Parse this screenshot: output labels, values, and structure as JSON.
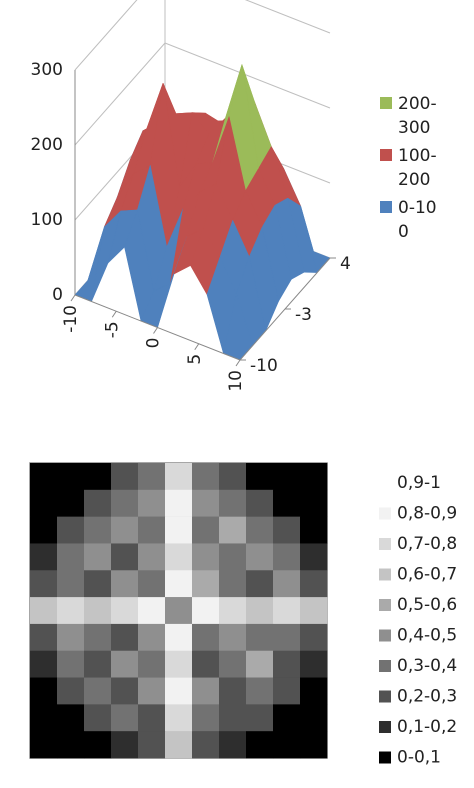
{
  "chart_data": [
    {
      "type": "surface",
      "x": [
        -10,
        -8,
        -6,
        -4,
        -2,
        0,
        2,
        4,
        6,
        8,
        10
      ],
      "depth": [
        -10,
        -8,
        -6,
        -4,
        -2,
        0,
        2,
        4
      ],
      "z": [
        [
          0,
          0,
          60,
          90,
          0,
          0,
          80,
          100,
          70,
          0,
          0
        ],
        [
          0,
          80,
          110,
          120,
          20,
          40,
          110,
          130,
          100,
          60,
          0
        ],
        [
          0,
          100,
          140,
          160,
          60,
          120,
          150,
          170,
          130,
          90,
          0
        ],
        [
          20,
          130,
          180,
          250,
          120,
          160,
          170,
          240,
          150,
          110,
          20
        ],
        [
          30,
          150,
          170,
          190,
          200,
          180,
          210,
          290,
          160,
          120,
          30
        ],
        [
          20,
          120,
          160,
          150,
          180,
          170,
          200,
          220,
          170,
          110,
          20
        ],
        [
          0,
          90,
          130,
          140,
          150,
          160,
          170,
          150,
          120,
          80,
          0
        ],
        [
          0,
          0,
          40,
          60,
          80,
          90,
          80,
          60,
          40,
          0,
          0
        ]
      ],
      "xlim": [
        -10,
        10
      ],
      "xticks": [
        -10,
        -5,
        0,
        5,
        10
      ],
      "depth_lim": [
        -10,
        4
      ],
      "depth_ticks": [
        4,
        -3,
        -10
      ],
      "ylim": [
        0,
        300
      ],
      "yticks": [
        0,
        100,
        200,
        300
      ],
      "grid": true,
      "series": [
        {
          "name": "200-300",
          "color": "#9bbb59",
          "range": [
            200,
            300
          ]
        },
        {
          "name": "100-200",
          "color": "#c0504d",
          "range": [
            100,
            200
          ]
        },
        {
          "name": "0-100",
          "color": "#4f81bd",
          "range": [
            0,
            100
          ]
        }
      ]
    },
    {
      "type": "contour",
      "z": [
        [
          0,
          0,
          0,
          0.2,
          0.3,
          0.7,
          0.3,
          0.2,
          0,
          0,
          0
        ],
        [
          0,
          0,
          0.2,
          0.3,
          0.4,
          0.8,
          0.4,
          0.3,
          0.2,
          0,
          0
        ],
        [
          0,
          0.2,
          0.3,
          0.4,
          0.3,
          0.8,
          0.3,
          0.5,
          0.3,
          0.2,
          0
        ],
        [
          0.1,
          0.3,
          0.4,
          0.2,
          0.4,
          0.7,
          0.4,
          0.3,
          0.4,
          0.3,
          0.1
        ],
        [
          0.2,
          0.3,
          0.2,
          0.4,
          0.3,
          0.8,
          0.5,
          0.3,
          0.2,
          0.4,
          0.2
        ],
        [
          0.6,
          0.7,
          0.6,
          0.7,
          0.8,
          0.4,
          0.8,
          0.7,
          0.6,
          0.7,
          0.6
        ],
        [
          0.2,
          0.4,
          0.3,
          0.2,
          0.4,
          0.8,
          0.3,
          0.4,
          0.3,
          0.3,
          0.2
        ],
        [
          0.1,
          0.3,
          0.2,
          0.4,
          0.3,
          0.7,
          0.2,
          0.3,
          0.5,
          0.2,
          0.1
        ],
        [
          0,
          0.2,
          0.3,
          0.2,
          0.4,
          0.8,
          0.4,
          0.2,
          0.3,
          0.2,
          0
        ],
        [
          0,
          0,
          0.2,
          0.3,
          0.2,
          0.7,
          0.3,
          0.2,
          0.2,
          0,
          0
        ],
        [
          0,
          0,
          0,
          0.1,
          0.2,
          0.6,
          0.2,
          0.1,
          0,
          0,
          0
        ]
      ],
      "series": [
        {
          "name": "0,9-1",
          "color": "#ffffff",
          "range": [
            0.9,
            1
          ]
        },
        {
          "name": "0,8-0,9",
          "color": "#f2f2f2",
          "range": [
            0.8,
            0.9
          ]
        },
        {
          "name": "0,7-0,8",
          "color": "#d9d9d9",
          "range": [
            0.7,
            0.8
          ]
        },
        {
          "name": "0,6-0,7",
          "color": "#c4c4c4",
          "range": [
            0.6,
            0.7
          ]
        },
        {
          "name": "0,5-0,6",
          "color": "#aaaaaa",
          "range": [
            0.5,
            0.6
          ]
        },
        {
          "name": "0,4-0,5",
          "color": "#8f8f8f",
          "range": [
            0.4,
            0.5
          ]
        },
        {
          "name": "0,3-0,4",
          "color": "#727272",
          "range": [
            0.3,
            0.4
          ]
        },
        {
          "name": "0,2-0,3",
          "color": "#525252",
          "range": [
            0.2,
            0.3
          ]
        },
        {
          "name": "0,1-0,2",
          "color": "#2e2e2e",
          "range": [
            0.1,
            0.2
          ]
        },
        {
          "name": "0-0,1",
          "color": "#000000",
          "range": [
            0,
            0.1
          ]
        }
      ]
    }
  ]
}
